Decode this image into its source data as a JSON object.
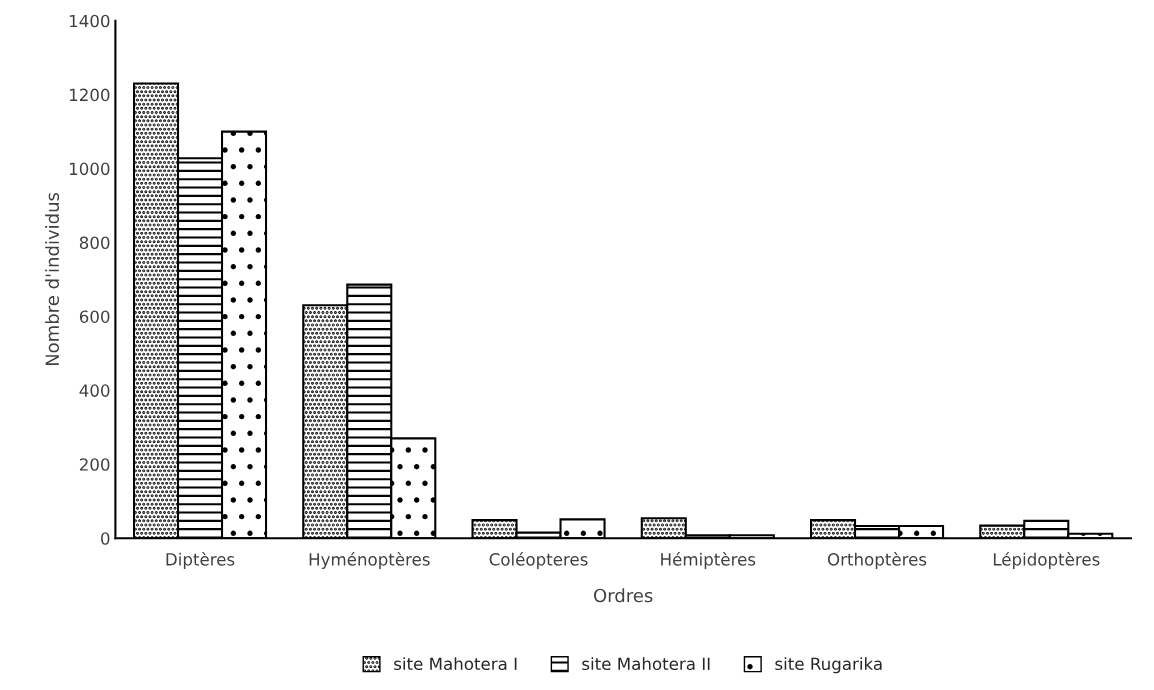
{
  "chart_data": {
    "type": "bar",
    "xlabel": "Ordres",
    "ylabel": "Nombre d'individus",
    "categories": [
      "Diptères",
      "Hyménoptères",
      "Coléopteres",
      "Hémiptères",
      "Orthoptères",
      "Lépidoptères"
    ],
    "series": [
      {
        "name": "site Mahotera I",
        "color": "#000000",
        "values": [
          1230,
          630,
          49,
          54,
          49,
          34
        ]
      },
      {
        "name": "site Mahotera II",
        "color": "#000000",
        "values": [
          1028,
          686,
          15,
          8,
          33,
          47
        ]
      },
      {
        "name": "site Rugarika",
        "color": "#000000",
        "values": [
          1100,
          270,
          51,
          8,
          33,
          12
        ]
      }
    ],
    "ylim": [
      0,
      1400
    ],
    "yticks": [
      0,
      200,
      400,
      600,
      800,
      1000,
      1200,
      1400
    ],
    "grid": false,
    "legend": "bottom"
  }
}
